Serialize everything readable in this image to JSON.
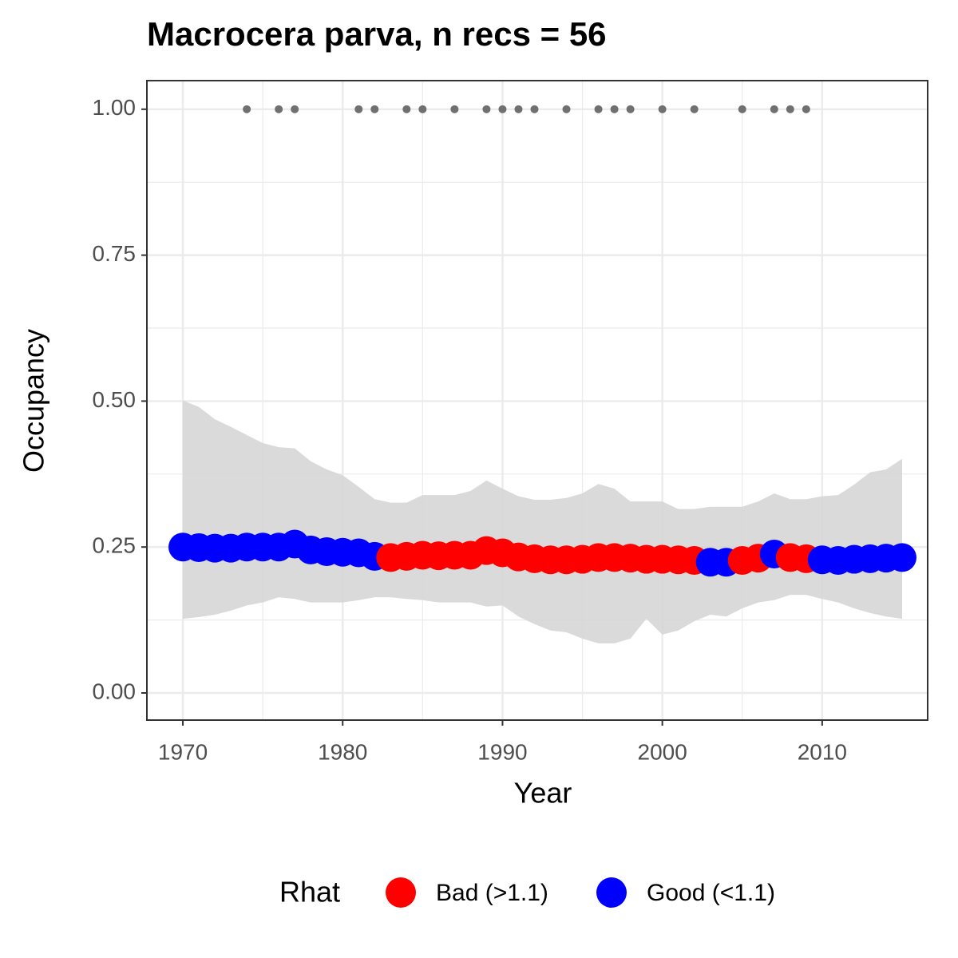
{
  "chart_data": {
    "type": "scatter",
    "title": "Macrocera parva, n recs = 56",
    "x_label": "Year",
    "y_label": "Occupancy",
    "legend_title": "Rhat",
    "legend_position": "bottom",
    "grid": true,
    "x": [
      1970,
      1971,
      1972,
      1973,
      1974,
      1975,
      1976,
      1977,
      1978,
      1979,
      1980,
      1981,
      1982,
      1983,
      1984,
      1985,
      1986,
      1987,
      1988,
      1989,
      1990,
      1991,
      1992,
      1993,
      1994,
      1995,
      1996,
      1997,
      1998,
      1999,
      2000,
      2001,
      2002,
      2003,
      2004,
      2005,
      2006,
      2007,
      2008,
      2009,
      2010,
      2011,
      2012,
      2013,
      2014,
      2015
    ],
    "series": [
      {
        "name": "Bad (>1.1)",
        "color": "#ff0000",
        "values": [
          null,
          null,
          null,
          null,
          null,
          null,
          null,
          null,
          null,
          null,
          null,
          null,
          null,
          0.232,
          0.234,
          0.236,
          0.235,
          0.236,
          0.236,
          0.244,
          0.24,
          0.233,
          0.23,
          0.228,
          0.228,
          0.229,
          0.232,
          0.232,
          0.231,
          0.229,
          0.229,
          0.228,
          0.227,
          null,
          null,
          0.227,
          0.231,
          null,
          0.232,
          0.23,
          null,
          null,
          null,
          null,
          null,
          null
        ]
      },
      {
        "name": "Good (<1.1)",
        "color": "#0000ff",
        "values": [
          0.25,
          0.249,
          0.248,
          0.248,
          0.25,
          0.25,
          0.25,
          0.255,
          0.245,
          0.242,
          0.241,
          0.24,
          0.234,
          null,
          null,
          null,
          null,
          null,
          null,
          null,
          null,
          null,
          null,
          null,
          null,
          null,
          null,
          null,
          null,
          null,
          null,
          null,
          null,
          0.224,
          0.224,
          null,
          null,
          0.238,
          null,
          null,
          0.228,
          0.227,
          0.229,
          0.23,
          0.231,
          0.232
        ]
      }
    ],
    "ribbon": {
      "color": "#d6d6d6",
      "upper": [
        0.501,
        0.49,
        0.469,
        0.456,
        0.442,
        0.428,
        0.421,
        0.419,
        0.397,
        0.383,
        0.373,
        0.353,
        0.332,
        0.326,
        0.326,
        0.339,
        0.339,
        0.339,
        0.346,
        0.364,
        0.35,
        0.337,
        0.331,
        0.331,
        0.334,
        0.342,
        0.358,
        0.35,
        0.328,
        0.328,
        0.328,
        0.315,
        0.315,
        0.319,
        0.319,
        0.319,
        0.328,
        0.342,
        0.332,
        0.332,
        0.337,
        0.339,
        0.357,
        0.378,
        0.383,
        0.401
      ],
      "lower": [
        0.127,
        0.13,
        0.134,
        0.141,
        0.15,
        0.155,
        0.164,
        0.161,
        0.155,
        0.155,
        0.155,
        0.159,
        0.164,
        0.164,
        0.161,
        0.159,
        0.155,
        0.155,
        0.155,
        0.148,
        0.15,
        0.131,
        0.118,
        0.107,
        0.104,
        0.093,
        0.085,
        0.085,
        0.093,
        0.127,
        0.1,
        0.107,
        0.123,
        0.134,
        0.131,
        0.145,
        0.155,
        0.159,
        0.168,
        0.168,
        0.161,
        0.155,
        0.145,
        0.137,
        0.131,
        0.127
      ]
    },
    "records": {
      "color": "#707070",
      "x": [
        1974,
        1976,
        1977,
        1981,
        1982,
        1984,
        1985,
        1987,
        1989,
        1990,
        1991,
        1992,
        1994,
        1996,
        1997,
        1998,
        2000,
        2002,
        2005,
        2007,
        2008,
        2009
      ],
      "values": [
        1,
        1,
        1,
        1,
        1,
        1,
        1,
        1,
        1,
        1,
        1,
        1,
        1,
        1,
        1,
        1,
        1,
        1,
        1,
        1,
        1,
        1
      ]
    },
    "xlim": [
      1967.75,
      2016.6
    ],
    "ylim": [
      -0.0465,
      1.049
    ],
    "xticks": [
      1970,
      1980,
      1990,
      2000,
      2010
    ],
    "yticks": [
      {
        "value": 0,
        "label": "0.00"
      },
      {
        "value": 0.25,
        "label": "0.25"
      },
      {
        "value": 0.5,
        "label": "0.50"
      },
      {
        "value": 0.75,
        "label": "0.75"
      },
      {
        "value": 1,
        "label": "1.00"
      }
    ]
  }
}
